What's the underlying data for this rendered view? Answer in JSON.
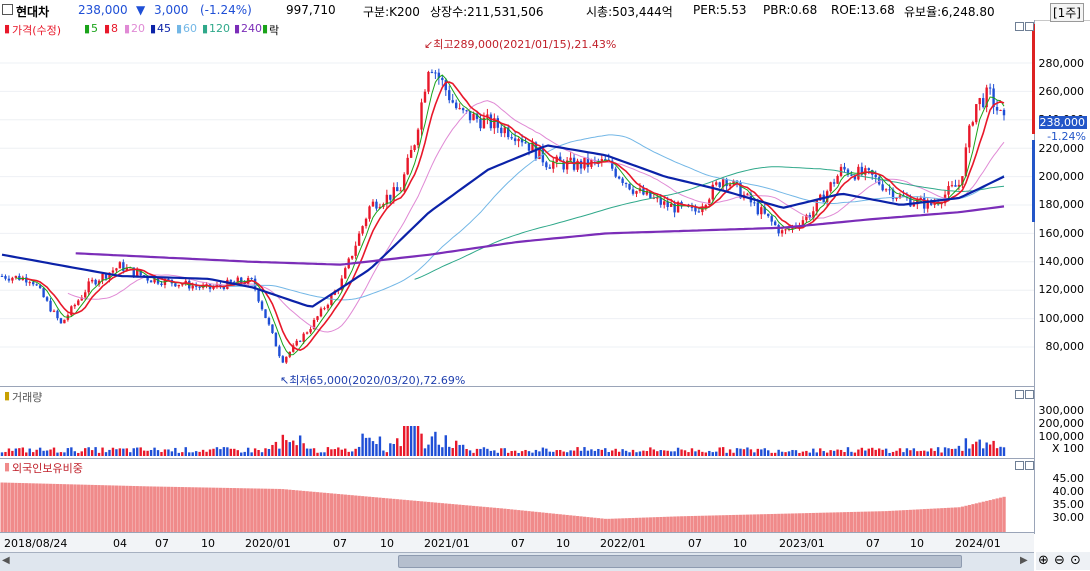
{
  "header": {
    "stock_name": "현대차",
    "price": "238,000",
    "change_arrow": "▼",
    "change": "3,000",
    "change_pct": "(-1.24%)",
    "volume": "997,710",
    "market": "구분:K200",
    "listed_shares": "상장수:211,531,506",
    "market_cap": "시총:503,444억",
    "per": "PER:5.53",
    "pbr": "PBR:0.68",
    "roe": "ROE:13.68",
    "reserve_ratio": "유보율:6,248.80",
    "period": "[1주]"
  },
  "price_panel": {
    "legend": {
      "price_label": "가격(수정)",
      "ma5": "5",
      "ma8": "8",
      "ma20": "20",
      "ma45": "45",
      "ma60": "60",
      "ma120": "120",
      "ma240": "240",
      "rak": "락"
    },
    "high_annotation": "최고289,000(2021/01/15),21.43%",
    "low_annotation": "최저65,000(2020/03/20),72.69%",
    "y_labels": [
      "280,000",
      "260,000",
      "240,000",
      "220,000",
      "200,000",
      "180,000",
      "160,000",
      "140,000",
      "120,000",
      "100,000",
      "80,000"
    ],
    "current_price_tag": "238,000",
    "current_pct_tag": "-1.24%"
  },
  "volume_panel": {
    "title": "거래량",
    "y_labels": [
      "300,000",
      "200,000",
      "100,000"
    ],
    "unit": "X 100"
  },
  "foreign_panel": {
    "title": "외국인보유비중",
    "y_labels": [
      "45.00",
      "40.00",
      "35.00",
      "30.00"
    ]
  },
  "x_axis": [
    "2018/08/24",
    "04",
    "07",
    "10",
    "2020/01",
    "07",
    "10",
    "2021/01",
    "07",
    "10",
    "2022/01",
    "07",
    "10",
    "2023/01",
    "07",
    "10",
    "2024/01"
  ],
  "colors": {
    "up": "#e8182a",
    "down": "#1f4fd6",
    "ma5": "#1aa31a",
    "ma8": "#e8182a",
    "ma20": "#e08ad5",
    "ma45": "#0b22a8",
    "ma60": "#73b7e6",
    "ma120": "#2fa88a",
    "ma240": "#7b2db8",
    "foreign": "#f08a8a"
  },
  "chart_data": {
    "type": "line",
    "title": "현대차",
    "xlabel": "",
    "ylabel": "",
    "ylim": [
      65000,
      295000
    ],
    "series": [
      {
        "name": "가격(수정)",
        "x": [
          "2018/08",
          "2018/10",
          "2018/12",
          "2019/02",
          "2019/04",
          "2019/06",
          "2019/08",
          "2019/10",
          "2019/12",
          "2020/01",
          "2020/03",
          "2020/05",
          "2020/07",
          "2020/09",
          "2020/11",
          "2020/12",
          "2021/01",
          "2021/03",
          "2021/05",
          "2021/07",
          "2021/09",
          "2021/11",
          "2022/01",
          "2022/03",
          "2022/05",
          "2022/07",
          "2022/09",
          "2022/11",
          "2023/01",
          "2023/03",
          "2023/05",
          "2023/07",
          "2023/09",
          "2023/11",
          "2024/01",
          "2024/02",
          "2024/03",
          "2024/04"
        ],
        "values": [
          130000,
          128000,
          96000,
          125000,
          137000,
          128000,
          125000,
          121000,
          126000,
          126000,
          70000,
          95000,
          125000,
          180000,
          190000,
          225000,
          282000,
          245000,
          238000,
          230000,
          210000,
          208000,
          210000,
          190000,
          180000,
          175000,
          200000,
          180000,
          160000,
          175000,
          205000,
          200000,
          185000,
          180000,
          195000,
          250000,
          258000,
          238000
        ]
      },
      {
        "name": "45",
        "x": [
          "2018/08",
          "2019/04",
          "2019/10",
          "2020/01",
          "2020/05",
          "2020/09",
          "2021/01",
          "2021/05",
          "2021/09",
          "2022/01",
          "2022/05",
          "2022/09",
          "2023/01",
          "2023/05",
          "2023/09",
          "2024/01",
          "2024/04"
        ],
        "values": [
          145000,
          130000,
          128000,
          122000,
          108000,
          135000,
          175000,
          205000,
          222000,
          215000,
          200000,
          190000,
          178000,
          188000,
          180000,
          185000,
          200000
        ]
      },
      {
        "name": "240",
        "x": [
          "2019/01",
          "2019/07",
          "2020/01",
          "2020/07",
          "2021/01",
          "2021/07",
          "2022/01",
          "2022/07",
          "2023/01",
          "2023/07",
          "2024/01",
          "2024/04"
        ],
        "values": [
          146000,
          143000,
          140000,
          138000,
          145000,
          154000,
          160000,
          162000,
          164000,
          170000,
          175000,
          179000
        ]
      }
    ]
  }
}
